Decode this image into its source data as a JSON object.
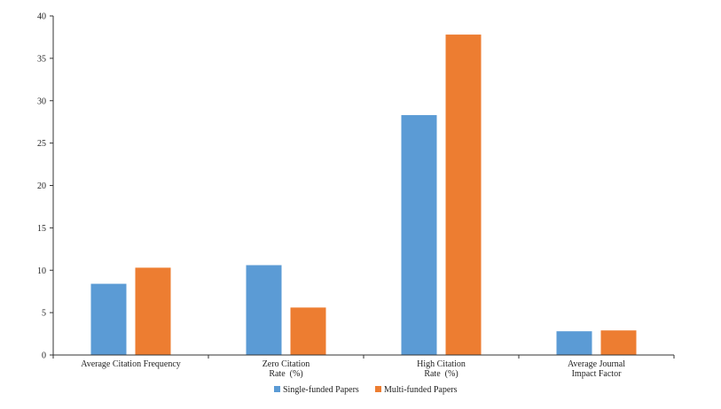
{
  "chart_data": {
    "type": "bar",
    "categories": [
      [
        "Average Citation Frequency"
      ],
      [
        "Zero Citation",
        "Rate  (%)"
      ],
      [
        "High Citation",
        "Rate  (%)"
      ],
      [
        "Average Journal",
        "Impact Factor"
      ]
    ],
    "series": [
      {
        "name": "Single-funded Papers",
        "color": "#5B9BD5",
        "values": [
          8.4,
          10.6,
          28.3,
          2.8
        ]
      },
      {
        "name": "Multi-funded Papers",
        "color": "#ED7D31",
        "values": [
          10.3,
          5.6,
          37.8,
          2.9
        ]
      }
    ],
    "ylim": [
      0,
      40
    ],
    "yticks": [
      0,
      5,
      10,
      15,
      20,
      25,
      30,
      35,
      40
    ],
    "legend_position": "bottom-center",
    "grid": false
  }
}
